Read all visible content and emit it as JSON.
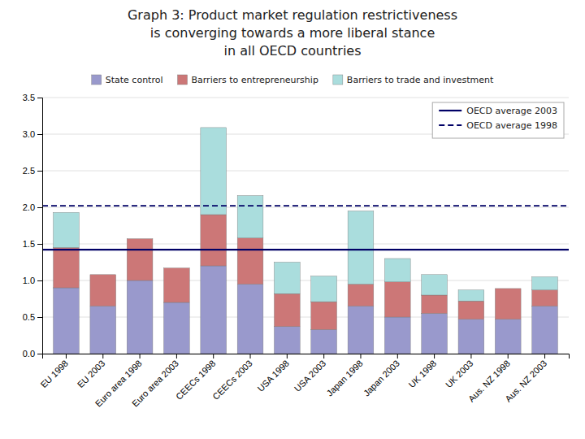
{
  "chart_data": {
    "type": "bar",
    "title": [
      "Graph 3:  Product market regulation restrictiveness",
      "is converging towards a more liberal stance",
      "in all OECD countries"
    ],
    "categories": [
      "EU 1998",
      "EU 2003",
      "Euro area 1998",
      "Euro area 2003",
      "CEECs 1998",
      "CEECs 2003",
      "USA 1998",
      "USA 2003",
      "Japan 1998",
      "Japan 2003",
      "UK 1998",
      "UK 2003",
      "Aus. NZ 1998",
      "Aus. NZ 2003"
    ],
    "series": [
      {
        "name": "State control",
        "color": "#9999cc",
        "values": [
          0.9,
          0.65,
          1.0,
          0.7,
          1.2,
          0.95,
          0.37,
          0.33,
          0.65,
          0.5,
          0.55,
          0.47,
          0.47,
          0.65
        ]
      },
      {
        "name": "Barriers to entrepreneurship",
        "color": "#cc7777",
        "values": [
          0.55,
          0.43,
          0.57,
          0.47,
          0.7,
          0.63,
          0.45,
          0.38,
          0.3,
          0.48,
          0.25,
          0.25,
          0.42,
          0.22
        ]
      },
      {
        "name": "Barriers to trade and investment",
        "color": "#aadddd",
        "values": [
          0.48,
          0.0,
          0.0,
          0.0,
          1.19,
          0.58,
          0.43,
          0.35,
          1.0,
          0.32,
          0.28,
          0.15,
          0.0,
          0.18
        ]
      }
    ],
    "reference_lines": [
      {
        "name": "OECD average 2003",
        "value": 1.42,
        "color": "#000066",
        "line_style": "solid"
      },
      {
        "name": "OECD average 1998",
        "value": 2.02,
        "color": "#000066",
        "line_style": "dashed"
      }
    ],
    "stacked": true,
    "ylim": [
      0,
      3.5
    ],
    "yticks": [
      {
        "value": 0,
        "label": "0.0"
      },
      0.5,
      {
        "value": 1,
        "label": "1.0"
      },
      1.5,
      {
        "value": 2,
        "label": "2.0"
      },
      2.5,
      {
        "value": 3,
        "label": "3.0"
      },
      3.5
    ],
    "grid": true,
    "legend": "upper right"
  }
}
